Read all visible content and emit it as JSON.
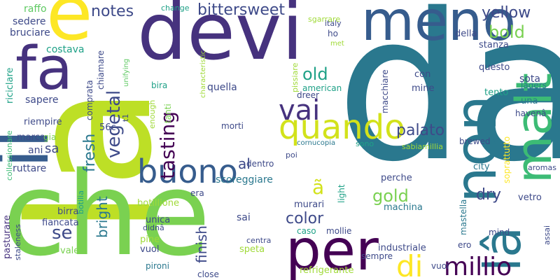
{
  "palette": [
    "#440154",
    "#46327e",
    "#365c8d",
    "#277f8e",
    "#1fa187",
    "#4ac16d",
    "#a0da39",
    "#fde725"
  ],
  "words": [
    {
      "text": "da",
      "color": "#2a788e"
    },
    {
      "text": "la",
      "color": "#bddf26"
    },
    {
      "text": "che",
      "color": "#7ad151"
    },
    {
      "text": "devi",
      "color": "#46327e"
    },
    {
      "text": "il",
      "color": "#365c8d"
    },
    {
      "text": "e",
      "color": "#fde725"
    },
    {
      "text": "fa",
      "color": "#46327e"
    },
    {
      "text": "meno",
      "color": "#365c8d"
    },
    {
      "text": "non",
      "color": "#2a788e"
    },
    {
      "text": "malt",
      "color": "#3cbb75"
    },
    {
      "text": "per",
      "color": "#440154"
    },
    {
      "text": "lâ",
      "color": "#2a788e"
    },
    {
      "text": "quando",
      "color": "#d2e21b"
    },
    {
      "text": "buono",
      "color": "#365c8d"
    },
    {
      "text": "vai",
      "color": "#46327e"
    },
    {
      "text": "millio",
      "color": "#440154"
    },
    {
      "text": "di",
      "color": "#fde725"
    },
    {
      "text": "notes",
      "color": "#3e4a89"
    },
    {
      "text": "bittersweet",
      "color": "#3e4a89"
    },
    {
      "text": "yellow",
      "color": "#3e4a89"
    },
    {
      "text": "bold",
      "color": "#7ad151"
    },
    {
      "text": "tasting",
      "color": "#440154"
    },
    {
      "text": "vegetal",
      "color": "#3e4a89"
    },
    {
      "text": "fresh",
      "color": "#2a788e"
    },
    {
      "text": "old",
      "color": "#1fa187"
    },
    {
      "text": "palato",
      "color": "#3e4a89"
    },
    {
      "text": "gold",
      "color": "#7ad151"
    },
    {
      "text": "dry",
      "color": "#3e4a89"
    },
    {
      "text": "se",
      "color": "#3e4a89"
    },
    {
      "text": "al",
      "color": "#3e4a89"
    },
    {
      "text": "ã",
      "color": "#d2e21b"
    },
    {
      "text": "color",
      "color": "#3e4a89"
    },
    {
      "text": "bright",
      "color": "#2a788e"
    },
    {
      "text": "finish",
      "color": "#3e4a89"
    },
    {
      "text": "raffo",
      "color": "#5ec962"
    },
    {
      "text": "sedere",
      "color": "#3e4a89"
    },
    {
      "text": "bruciare",
      "color": "#3e4a89"
    },
    {
      "text": "costava",
      "color": "#1fa187"
    },
    {
      "text": "riciclare",
      "color": "#1fa187"
    },
    {
      "text": "sapere",
      "color": "#3e4a89"
    },
    {
      "text": "riempire",
      "color": "#3e4a89"
    },
    {
      "text": "collessionare",
      "color": "#3cbb75"
    },
    {
      "text": "marca",
      "color": "#3e4a89"
    },
    {
      "text": "gia",
      "color": "#7ad151"
    },
    {
      "text": "ani",
      "color": "#3e4a89"
    },
    {
      "text": "sa",
      "color": "#3e4a89"
    },
    {
      "text": "ruttare",
      "color": "#3e4a89"
    },
    {
      "text": "pasturare",
      "color": "#46327e"
    },
    {
      "text": "staleness",
      "color": "#3e4a89"
    },
    {
      "text": "botilia",
      "color": "#1fa187"
    },
    {
      "text": "birra",
      "color": "#3e4a89"
    },
    {
      "text": "fiancata",
      "color": "#3e4a89"
    },
    {
      "text": "vale",
      "color": "#7ad151"
    },
    {
      "text": "comprata",
      "color": "#3e4a89"
    },
    {
      "text": "chiamare",
      "color": "#3e4a89"
    },
    {
      "text": "unifying",
      "color": "#5ec962"
    },
    {
      "text": "t1",
      "color": "#3e4a89"
    },
    {
      "text": "56c",
      "color": "#3e4a89"
    },
    {
      "text": "change",
      "color": "#1fa187"
    },
    {
      "text": "sgarrare",
      "color": "#a0da39"
    },
    {
      "text": "characteristic",
      "color": "#a0da39"
    },
    {
      "text": "bira",
      "color": "#1fa187"
    },
    {
      "text": "quella",
      "color": "#3e4a89"
    },
    {
      "text": "tanti",
      "color": "#7ad151"
    },
    {
      "text": "enough",
      "color": "#a0da39"
    },
    {
      "text": "botillione",
      "color": "#a0da39"
    },
    {
      "text": "unica",
      "color": "#3e4a89"
    },
    {
      "text": "pine",
      "color": "#a0da39"
    },
    {
      "text": "vuol",
      "color": "#3e4a89"
    },
    {
      "text": "didnâ",
      "color": "#3e4a89"
    },
    {
      "text": "pironi",
      "color": "#2a788e"
    },
    {
      "text": "era",
      "color": "#3e4a89"
    },
    {
      "text": "sai",
      "color": "#3e4a89"
    },
    {
      "text": "morti",
      "color": "#3e4a89"
    },
    {
      "text": "scoreggiare",
      "color": "#2a788e"
    },
    {
      "text": "dentro",
      "color": "#3e4a89"
    },
    {
      "text": "poi",
      "color": "#3e4a89"
    },
    {
      "text": "cornucopia",
      "color": "#2a788e"
    },
    {
      "text": "light",
      "color": "#1fa187"
    },
    {
      "text": "murari",
      "color": "#3e4a89"
    },
    {
      "text": "centra",
      "color": "#3e4a89"
    },
    {
      "text": "speta",
      "color": "#a0da39"
    },
    {
      "text": "close",
      "color": "#3e4a89"
    },
    {
      "text": "caso",
      "color": "#1fa187"
    },
    {
      "text": "mollie",
      "color": "#3e4a89"
    },
    {
      "text": "refrigerante",
      "color": "#a0da39"
    },
    {
      "text": "italy",
      "color": "#3e4a89"
    },
    {
      "text": "ho",
      "color": "#3e4a89"
    },
    {
      "text": "met",
      "color": "#a0da39"
    },
    {
      "text": "pissiare",
      "color": "#a0da39"
    },
    {
      "text": "american",
      "color": "#1fa187"
    },
    {
      "text": "dreer",
      "color": "#3e4a89"
    },
    {
      "text": "con",
      "color": "#3e4a89"
    },
    {
      "text": "macchiare",
      "color": "#3e4a89"
    },
    {
      "text": "mine",
      "color": "#3e4a89"
    },
    {
      "text": "della",
      "color": "#3e4a89"
    },
    {
      "text": "stanza",
      "color": "#3e4a89"
    },
    {
      "text": "questo",
      "color": "#3e4a89"
    },
    {
      "text": "lagers",
      "color": "#2a788e"
    },
    {
      "text": "sota",
      "color": "#3e4a89"
    },
    {
      "text": "tento",
      "color": "#1fa187"
    },
    {
      "text": "una",
      "color": "#2a788e"
    },
    {
      "text": "havenâ",
      "color": "#3e4a89"
    },
    {
      "text": "soprattutto",
      "color": "#fde725"
    },
    {
      "text": "brewed",
      "color": "#3e4a89"
    },
    {
      "text": "sabiamillia",
      "color": "#a0da39"
    },
    {
      "text": "sono",
      "color": "#1fa187"
    },
    {
      "text": "city",
      "color": "#2a788e"
    },
    {
      "text": "aromas",
      "color": "#3e4a89"
    },
    {
      "text": "vetro",
      "color": "#3e4a89"
    },
    {
      "text": "perche",
      "color": "#3e4a89"
    },
    {
      "text": "machina",
      "color": "#2a788e"
    },
    {
      "text": "mastella",
      "color": "#2a788e"
    },
    {
      "text": "mind",
      "color": "#3e4a89"
    },
    {
      "text": "ero",
      "color": "#3e4a89"
    },
    {
      "text": "assai",
      "color": "#3e4a89"
    },
    {
      "text": "industriale",
      "color": "#3e4a89"
    },
    {
      "text": "sempre",
      "color": "#3e4a89"
    },
    {
      "text": "vuoi",
      "color": "#3e4a89"
    }
  ]
}
